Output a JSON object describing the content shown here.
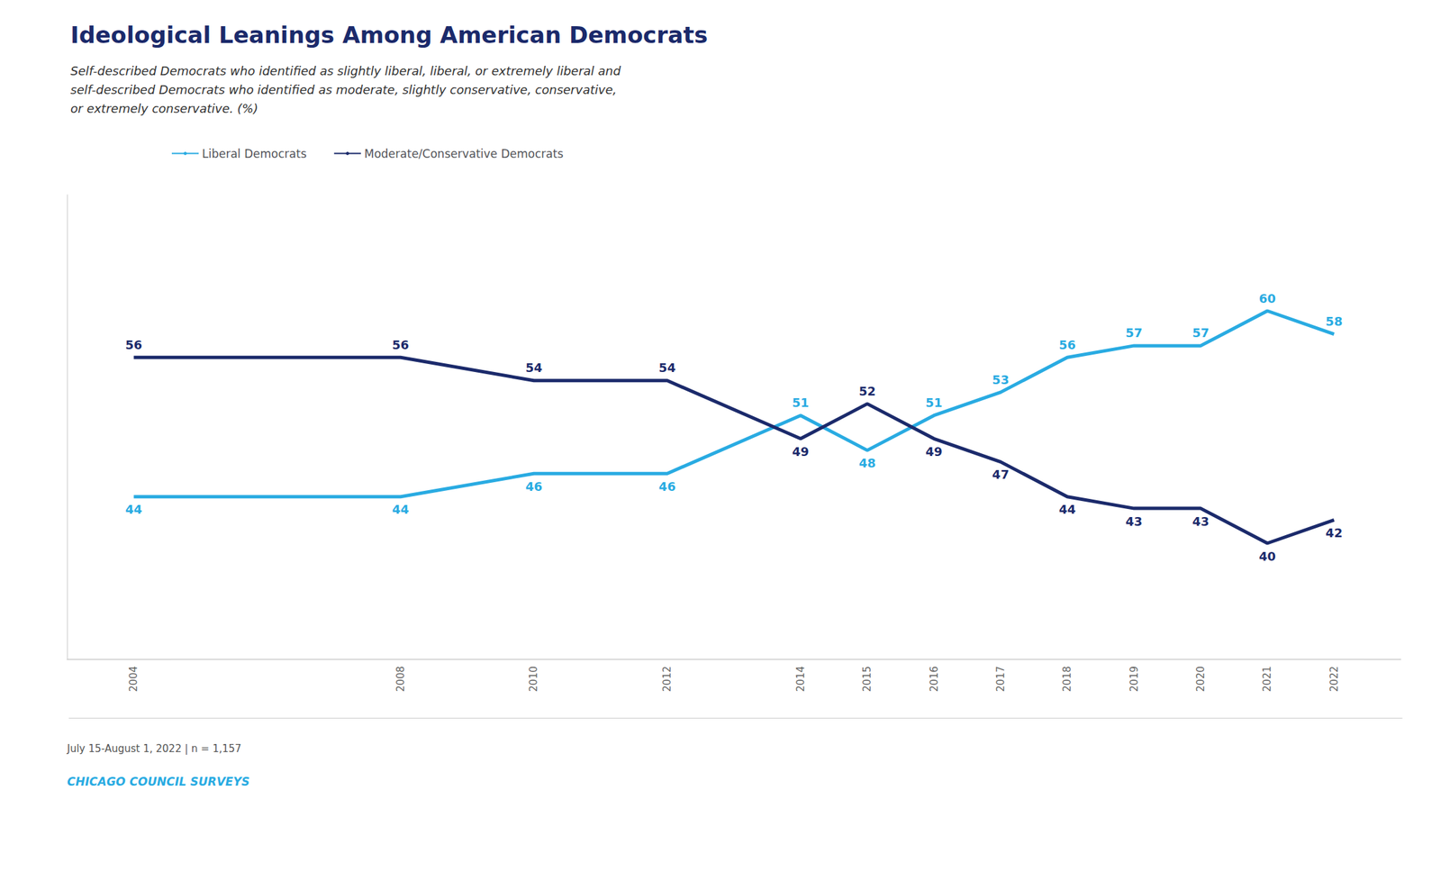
{
  "chart_data": {
    "type": "line",
    "title": "Ideological Leanings Among American Democrats",
    "subtitle": [
      "Self-described Democrats who identified as slightly liberal, liberal, or extremely liberal and",
      "self-described Democrats who identified as moderate, slightly conservative, conservative,",
      "or extremely conservative. (%)"
    ],
    "annotations": [
      "July 15-August 1, 2022 | n = 1,157",
      "CHICAGO COUNCIL SURVEYS"
    ],
    "x": [
      2004,
      2008,
      2010,
      2012,
      2014,
      2015,
      2016,
      2017,
      2018,
      2019,
      2020,
      2021,
      2022
    ],
    "series": [
      {
        "name": "Liberal Democrats",
        "color": "#29ABE2",
        "values": [
          44,
          44,
          46,
          46,
          51,
          48,
          51,
          53,
          56,
          57,
          57,
          60,
          58
        ]
      },
      {
        "name": "Moderate/Conservative Democrats",
        "color": "#1B2A6B",
        "values": [
          56,
          56,
          54,
          54,
          49,
          52,
          49,
          47,
          44,
          43,
          43,
          40,
          42
        ]
      }
    ],
    "xlim": [
      2003,
      2023
    ],
    "xticks": [
      2004,
      2008,
      2010,
      2012,
      2014,
      2015,
      2016,
      2017,
      2018,
      2019,
      2020,
      2021,
      2022
    ],
    "ylim": [
      30,
      70
    ],
    "tick_labels": "x",
    "grid": false,
    "legend": "top",
    "data_labels": true
  }
}
